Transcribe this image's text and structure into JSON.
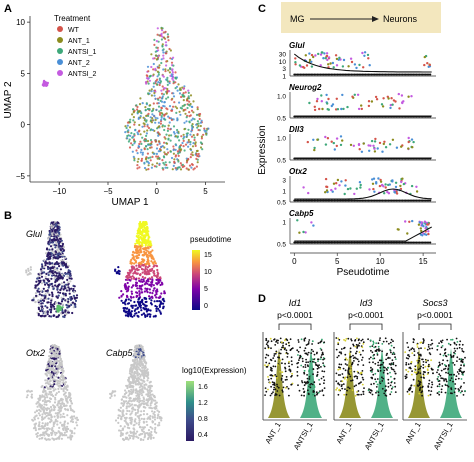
{
  "panels": [
    {
      "letter": "A"
    },
    {
      "letter": "B"
    },
    {
      "letter": "C"
    },
    {
      "letter": "D"
    }
  ],
  "colors": {
    "wt": "#d4544a",
    "ant1": "#8c8c1e",
    "antsi1": "#3ea87a",
    "ant2": "#4a8fd6",
    "antsi2": "#c45be0",
    "flow_box": "#f3e7be",
    "feature_gray": "#c8c8c8",
    "violin_ant": "#8c8c1e",
    "violin_antsi": "#3ea87a"
  },
  "umap": {
    "legend_title": "Treatment",
    "legend": [
      {
        "label": "WT",
        "color_key": "wt"
      },
      {
        "label": "ANT_1",
        "color_key": "ant1"
      },
      {
        "label": "ANTSI_1",
        "color_key": "antsi1"
      },
      {
        "label": "ANT_2",
        "color_key": "ant2"
      },
      {
        "label": "ANTSI_2",
        "color_key": "antsi2"
      }
    ]
  },
  "features": {
    "panels": [
      {
        "gene": "Glul"
      },
      {
        "gene": ""
      },
      {
        "gene": "Otx2"
      },
      {
        "gene": "Cabp5"
      }
    ],
    "pseudotime_title": "pseudotime",
    "expression_title": "log10(Expression)"
  },
  "trajectory": {
    "from_label": "MG",
    "to_label": "Neurons"
  },
  "violins": {
    "groups": [
      {
        "gene": "Id1",
        "pvalue": "p<0.0001"
      },
      {
        "gene": "Id3",
        "pvalue": "p<0.0001"
      },
      {
        "gene": "Socs3",
        "pvalue": "p<0.0001"
      }
    ]
  },
  "chart_data": [
    {
      "type": "scatter",
      "id": "umap",
      "xlabel": "UMAP 1",
      "ylabel": "UMAP 2",
      "xlim": [
        -13,
        7
      ],
      "ylim": [
        -5.6,
        10.6
      ],
      "xticks": [
        -10,
        -5,
        0,
        5
      ],
      "yticks": [
        -5,
        0,
        5,
        10
      ],
      "legend_position": "top-left"
    },
    {
      "type": "scatter",
      "id": "pseudotime-expression",
      "xlabel": "Pseudotime",
      "ylabel": "Expression",
      "xlim": [
        -0.5,
        16.5
      ],
      "xticks": [
        0,
        5,
        10,
        15
      ],
      "genes": [
        {
          "name": "Glul",
          "yticks": [
            "30",
            "10",
            "3",
            "1"
          ]
        },
        {
          "name": "Neurog2",
          "yticks": [
            "1.0",
            "0.5"
          ]
        },
        {
          "name": "Dll3",
          "yticks": [
            "1.0",
            "0.5"
          ]
        },
        {
          "name": "Otx2",
          "yticks": [
            "3",
            "1",
            "0.5"
          ]
        },
        {
          "name": "Cabp5",
          "yticks": [
            "1",
            "0.5"
          ]
        }
      ]
    },
    {
      "type": "scatter",
      "id": "pseudotime-legend",
      "colorbar_ticks": [
        15,
        10,
        5,
        0
      ]
    },
    {
      "type": "scatter",
      "id": "expression-legend",
      "colorbar_ticks": [
        1.6,
        1.2,
        0.8,
        0.4
      ]
    },
    {
      "type": "bar",
      "id": "violin",
      "categories": [
        "ANT_1",
        "ANTSI_1"
      ]
    }
  ]
}
